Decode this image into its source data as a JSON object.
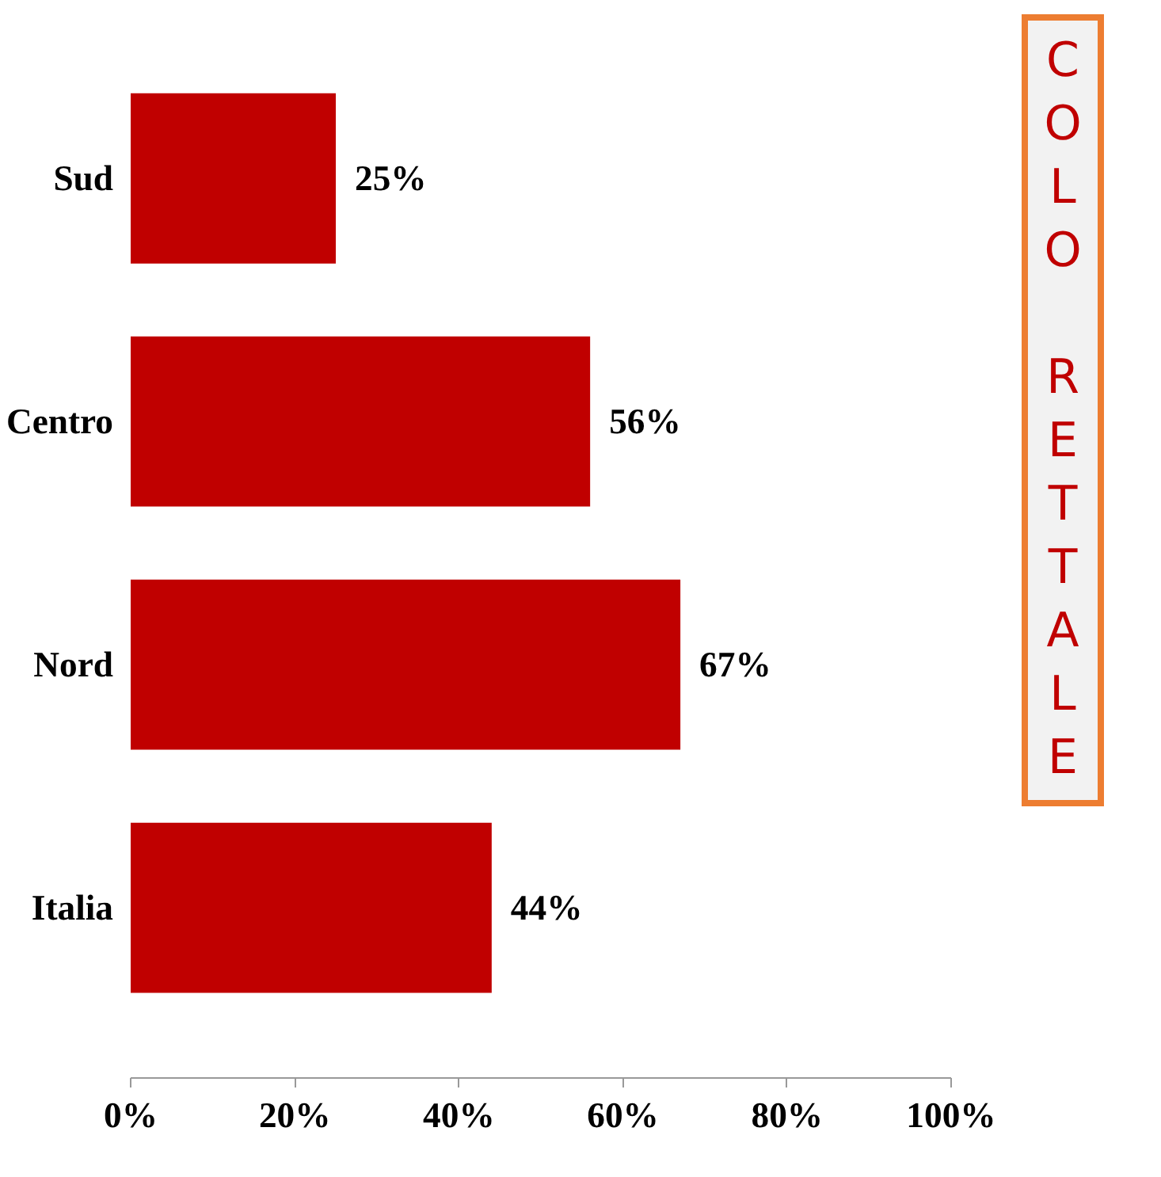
{
  "chart_data": {
    "type": "bar",
    "orientation": "horizontal",
    "title": "COLO RETTALE",
    "categories": [
      "Sud",
      "Centro",
      "Nord",
      "Italia"
    ],
    "values": [
      25,
      56,
      67,
      44
    ],
    "value_labels": [
      "25%",
      "56%",
      "67%",
      "44%"
    ],
    "color": "#c00000",
    "xlim": [
      0,
      100
    ],
    "xticks": [
      {
        "value": 0,
        "label": "0%"
      },
      {
        "value": 20,
        "label": "20%"
      },
      {
        "value": 40,
        "label": "40%"
      },
      {
        "value": 60,
        "label": "60%"
      },
      {
        "value": 80,
        "label": "80%"
      },
      {
        "value": 100,
        "label": "100%"
      }
    ],
    "grid": false
  }
}
